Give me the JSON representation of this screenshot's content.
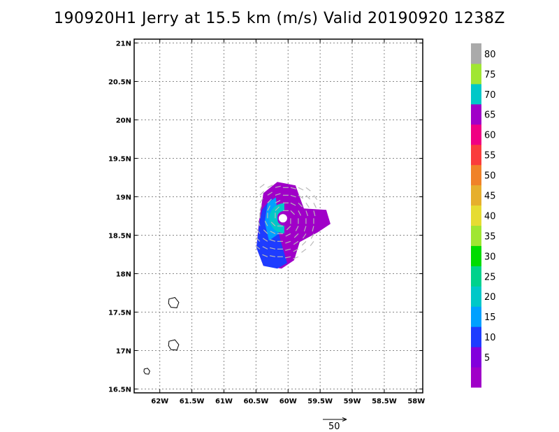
{
  "title": "190920H1 Jerry at 15.5 km (m/s) Valid 20190920 1238Z",
  "map": {
    "lon_range": [
      -62.4,
      -57.9
    ],
    "lat_range": [
      16.45,
      21.05
    ],
    "x_ticks": [
      {
        "lon": -62.0,
        "label": "62W"
      },
      {
        "lon": -61.5,
        "label": "61.5W"
      },
      {
        "lon": -61.0,
        "label": "61W"
      },
      {
        "lon": -60.5,
        "label": "60.5W"
      },
      {
        "lon": -60.0,
        "label": "60W"
      },
      {
        "lon": -59.5,
        "label": "59.5W"
      },
      {
        "lon": -59.0,
        "label": "59W"
      },
      {
        "lon": -58.5,
        "label": "58.5W"
      },
      {
        "lon": -58.0,
        "label": "58W"
      }
    ],
    "y_ticks": [
      {
        "lat": 21.0,
        "label": "21N"
      },
      {
        "lat": 20.5,
        "label": "20.5N"
      },
      {
        "lat": 20.0,
        "label": "20N"
      },
      {
        "lat": 19.5,
        "label": "19.5N"
      },
      {
        "lat": 19.0,
        "label": "19N"
      },
      {
        "lat": 18.5,
        "label": "18.5N"
      },
      {
        "lat": 18.0,
        "label": "18N"
      },
      {
        "lat": 17.5,
        "label": "17.5N"
      },
      {
        "lat": 17.0,
        "label": "17N"
      },
      {
        "lat": 16.5,
        "label": "16.5N"
      }
    ],
    "grid": true,
    "storm_center": {
      "lon": -60.08,
      "lat": 18.72
    },
    "islands": [
      {
        "name": "island-a",
        "lon": -61.78,
        "lat": 17.62
      },
      {
        "name": "island-b",
        "lon": -61.78,
        "lat": 17.07
      },
      {
        "name": "island-c",
        "lon": -62.2,
        "lat": 16.73
      }
    ]
  },
  "colorbar": {
    "segments": [
      {
        "label": "",
        "color": "#a000c8"
      },
      {
        "label": "5",
        "color": "#8200dc"
      },
      {
        "label": "10",
        "color": "#1e3cff"
      },
      {
        "label": "15",
        "color": "#00a0ff"
      },
      {
        "label": "20",
        "color": "#00c8c8"
      },
      {
        "label": "25",
        "color": "#00d28c"
      },
      {
        "label": "30",
        "color": "#00dc00"
      },
      {
        "label": "35",
        "color": "#a0e632"
      },
      {
        "label": "40",
        "color": "#e6dc32"
      },
      {
        "label": "45",
        "color": "#e6af2d"
      },
      {
        "label": "50",
        "color": "#f08228"
      },
      {
        "label": "55",
        "color": "#fa3c3c"
      },
      {
        "label": "60",
        "color": "#f00082"
      },
      {
        "label": "65",
        "color": "#a000c8"
      },
      {
        "label": "70",
        "color": "#00c8c8"
      },
      {
        "label": "75",
        "color": "#a0e632"
      },
      {
        "label": "80",
        "color": "#aaaaaa"
      }
    ]
  },
  "reference_vector": {
    "label": "50"
  }
}
